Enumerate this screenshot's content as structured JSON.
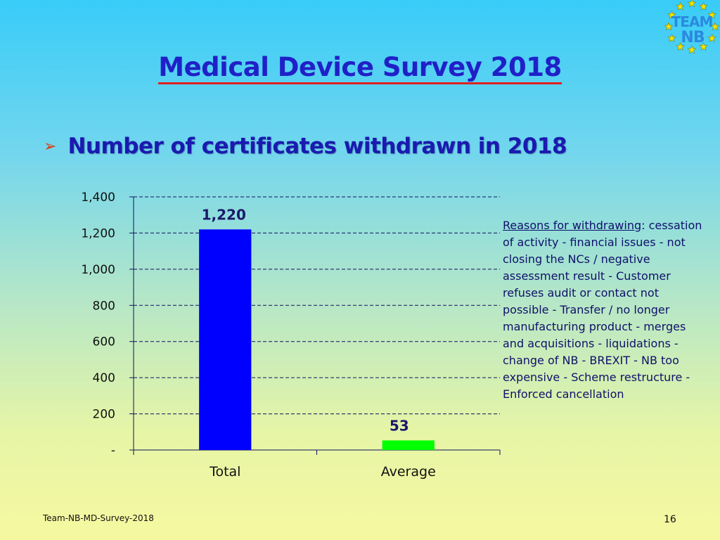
{
  "slide": {
    "title": "Medical Device Survey 2018",
    "bullet": "Number of certificates withdrawn in 2018",
    "footer_left": "Team-NB-MD-Survey-2018",
    "page_number": "16"
  },
  "logo": {
    "line1": "TEAM",
    "line2": "NB",
    "color": "#2a8adf",
    "star_color": "#f2e100"
  },
  "reasons": {
    "heading": "Reasons for withdrawing",
    "heading_suffix": ":",
    "body": "cessation of activity - financial issues - not closing the NCs / negative assessment result - Customer refuses audit or contact not possible - Transfer / no longer manufacturing product - merges and acquisitions - liquidations - change of NB - BREXIT - NB too expensive - Scheme restructure - Enforced cancellation"
  },
  "chart_data": {
    "type": "bar",
    "title": "Number of certificates withdrawn in 2018",
    "categories": [
      "Total",
      "Average"
    ],
    "values": [
      1220,
      53
    ],
    "data_labels": [
      "1,220",
      "53"
    ],
    "colors": [
      "#0000ff",
      "#00ff00"
    ],
    "ylim": [
      0,
      1400
    ],
    "yticks": [
      0,
      200,
      400,
      600,
      800,
      1000,
      1200,
      1400
    ],
    "ytick_labels": [
      "-",
      "200",
      "400",
      "600",
      "800",
      "1,000",
      "1,200",
      "1,400"
    ],
    "gridlines": "dashed",
    "xlabel": "",
    "ylabel": ""
  }
}
